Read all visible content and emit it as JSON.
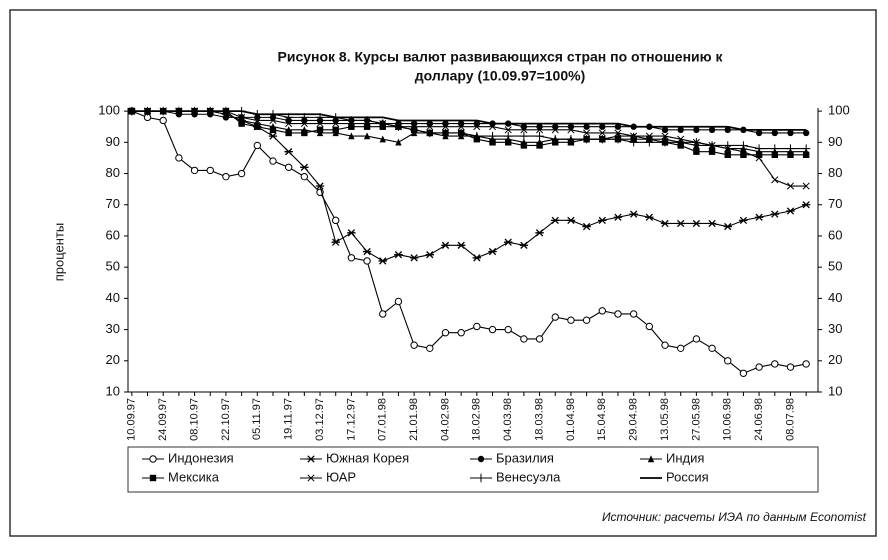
{
  "chart_data": {
    "type": "line",
    "title": [
      "Рисунок 8. Курсы валют развивающихся стран по отношению к",
      "доллару (10.09.97=100%)"
    ],
    "y_label": "проценты",
    "source": "Источник: расчеты ИЭА по данным Economist",
    "categories": [
      "10.09.97",
      null,
      "24.09.97",
      null,
      "08.10.97",
      null,
      "22.10.97",
      null,
      "05.11.97",
      null,
      "19.11.97",
      null,
      "03.12.97",
      null,
      "17.12.97",
      null,
      "07.01.98",
      null,
      "21.01.98",
      null,
      "04.02.98",
      null,
      "18.02.98",
      null,
      "04.03.98",
      null,
      "18.03.98",
      null,
      "01.04.98",
      null,
      "15.04.98",
      null,
      "29.04.98",
      null,
      "13.05.98",
      null,
      "27.05.98",
      null,
      "10.06.98",
      null,
      "24.06.98",
      null,
      "08.07.98",
      null
    ],
    "ylim": [
      10,
      101
    ],
    "yticks": [
      10,
      20,
      30,
      40,
      50,
      60,
      70,
      80,
      90,
      100
    ],
    "y2lim": [
      10,
      101
    ],
    "y2ticks": [
      10,
      20,
      30,
      40,
      50,
      60,
      70,
      80,
      90,
      100
    ],
    "series": [
      {
        "name": "Индонезия",
        "color": "#000000",
        "marker": "circle-open",
        "values": [
          100,
          98,
          97,
          85,
          81,
          81,
          79,
          80,
          89,
          84,
          82,
          79,
          74,
          65,
          53,
          52,
          35,
          39,
          25,
          24,
          29,
          29,
          31,
          30,
          30,
          27,
          27,
          34,
          33,
          33,
          36,
          35,
          35,
          31,
          25,
          24,
          27,
          24,
          20,
          16,
          18,
          19,
          18,
          19
        ]
      },
      {
        "name": "Южная Корея",
        "color": "#000000",
        "marker": "star",
        "values": [
          100,
          100,
          100,
          100,
          100,
          100,
          99,
          97,
          95,
          92,
          87,
          82,
          76,
          58,
          61,
          55,
          52,
          54,
          53,
          54,
          57,
          57,
          53,
          55,
          58,
          57,
          61,
          65,
          65,
          63,
          65,
          66,
          67,
          66,
          64,
          64,
          64,
          64,
          63,
          65,
          66,
          67,
          68,
          70
        ]
      },
      {
        "name": "Бразилия",
        "color": "#000000",
        "marker": "circle",
        "values": [
          100,
          100,
          100,
          99,
          99,
          99,
          98,
          98,
          98,
          98,
          97,
          97,
          97,
          97,
          97,
          97,
          96,
          96,
          96,
          96,
          96,
          96,
          96,
          96,
          96,
          95,
          95,
          95,
          95,
          95,
          95,
          95,
          95,
          95,
          94,
          94,
          94,
          94,
          94,
          94,
          93,
          93,
          93,
          93
        ]
      },
      {
        "name": "Индия",
        "color": "#000000",
        "marker": "triangle",
        "values": [
          100,
          100,
          100,
          100,
          100,
          100,
          99,
          97,
          96,
          95,
          94,
          94,
          93,
          93,
          92,
          92,
          91,
          90,
          93,
          93,
          92,
          92,
          92,
          91,
          91,
          90,
          90,
          91,
          91,
          91,
          91,
          92,
          92,
          91,
          91,
          90,
          89,
          89,
          88,
          88,
          87,
          87,
          87,
          87
        ]
      },
      {
        "name": "Мексика",
        "color": "#000000",
        "marker": "square",
        "values": [
          100,
          100,
          100,
          100,
          100,
          100,
          100,
          96,
          95,
          94,
          93,
          93,
          94,
          94,
          95,
          95,
          95,
          95,
          94,
          93,
          93,
          93,
          91,
          90,
          90,
          89,
          89,
          90,
          90,
          91,
          91,
          91,
          91,
          91,
          90,
          89,
          87,
          87,
          86,
          86,
          86,
          86,
          86,
          86
        ]
      },
      {
        "name": "ЮАР",
        "color": "#000000",
        "marker": "x",
        "values": [
          100,
          100,
          100,
          100,
          100,
          100,
          100,
          98,
          97,
          97,
          96,
          96,
          96,
          96,
          96,
          96,
          96,
          95,
          95,
          95,
          95,
          95,
          95,
          95,
          94,
          94,
          94,
          94,
          94,
          93,
          93,
          93,
          92,
          92,
          92,
          91,
          90,
          89,
          88,
          87,
          85,
          78,
          76,
          76
        ]
      },
      {
        "name": "Венесуэла",
        "color": "#000000",
        "marker": "plus",
        "values": [
          100,
          100,
          100,
          100,
          100,
          100,
          100,
          100,
          99,
          99,
          98,
          98,
          98,
          98,
          97,
          97,
          96,
          95,
          94,
          93,
          93,
          93,
          92,
          92,
          92,
          92,
          92,
          91,
          91,
          91,
          91,
          91,
          90,
          90,
          90,
          90,
          90,
          89,
          89,
          89,
          88,
          88,
          88,
          88
        ]
      },
      {
        "name": "Россия",
        "color": "#000000",
        "marker": "none",
        "values": [
          100,
          100,
          100,
          100,
          100,
          100,
          100,
          100,
          99,
          99,
          99,
          99,
          99,
          98,
          98,
          98,
          98,
          97,
          97,
          97,
          97,
          97,
          97,
          96,
          96,
          96,
          96,
          96,
          96,
          96,
          96,
          96,
          95,
          95,
          95,
          95,
          95,
          95,
          95,
          94,
          94,
          94,
          94,
          94
        ]
      }
    ]
  }
}
